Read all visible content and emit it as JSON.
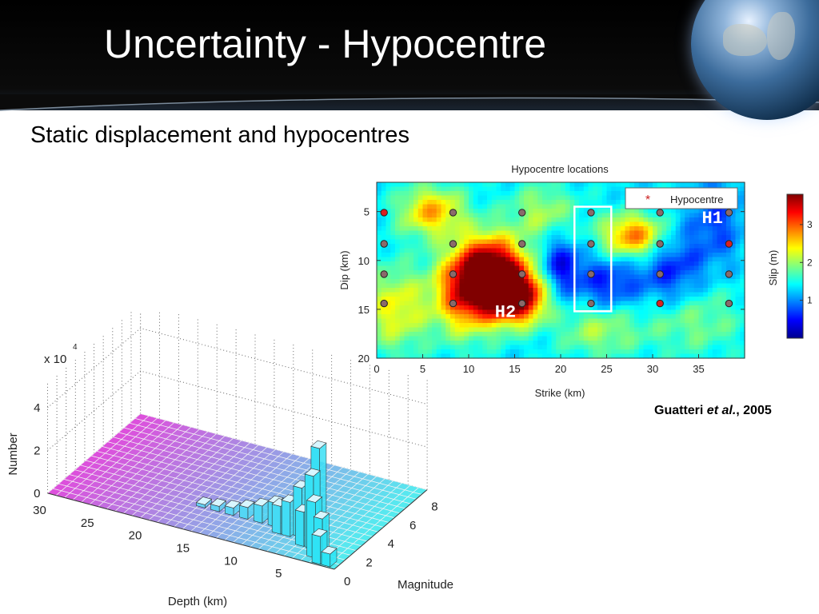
{
  "slide": {
    "title": "Uncertainty - Hypocentre",
    "subtitle": "Static displacement and hypocentres",
    "citation": {
      "author": "Guatteri",
      "etal": "et al.",
      "year": ", 2005"
    }
  },
  "colors": {
    "header_bg": "#000000",
    "title_text": "#ffffff",
    "hypocentre_marker": "#cc2222",
    "highlight_box": "#ffffff"
  },
  "chart_data": [
    {
      "type": "heatmap",
      "title": "Hypocentre locations",
      "xlabel": "Strike (km)",
      "ylabel": "Dip (km)",
      "xlim": [
        0,
        40
      ],
      "ylim": [
        20,
        2
      ],
      "xticks": [
        0,
        5,
        10,
        15,
        20,
        25,
        30,
        35
      ],
      "yticks": [
        5,
        10,
        15,
        20
      ],
      "colorbar": {
        "label": "Slip (m)",
        "ticks": [
          1,
          2,
          3
        ],
        "range": [
          0,
          3.8
        ],
        "colormap": "jet"
      },
      "legend": {
        "label": "Hypocentre",
        "placement": "top-right"
      },
      "annotations": [
        {
          "label": "H1",
          "x": 36.5,
          "y": 5.7
        },
        {
          "label": "H2",
          "x": 14,
          "y": 15.3
        }
      ],
      "highlight_box": {
        "x_range": [
          21.5,
          25.5
        ],
        "y_range": [
          4.5,
          15.2
        ]
      },
      "hypocentres": [
        {
          "x": 0.8,
          "y": 5.1,
          "hl": true
        },
        {
          "x": 8.3,
          "y": 5.1
        },
        {
          "x": 15.8,
          "y": 5.1
        },
        {
          "x": 23.3,
          "y": 5.1
        },
        {
          "x": 30.8,
          "y": 5.1
        },
        {
          "x": 38.3,
          "y": 5.1
        },
        {
          "x": 0.8,
          "y": 8.3
        },
        {
          "x": 8.3,
          "y": 8.3
        },
        {
          "x": 15.8,
          "y": 8.3
        },
        {
          "x": 23.3,
          "y": 8.3
        },
        {
          "x": 30.8,
          "y": 8.3
        },
        {
          "x": 38.3,
          "y": 8.3,
          "hl": true
        },
        {
          "x": 0.8,
          "y": 11.4
        },
        {
          "x": 8.3,
          "y": 11.4
        },
        {
          "x": 15.8,
          "y": 11.4
        },
        {
          "x": 23.3,
          "y": 11.4
        },
        {
          "x": 30.8,
          "y": 11.4
        },
        {
          "x": 38.3,
          "y": 11.4
        },
        {
          "x": 0.8,
          "y": 14.4
        },
        {
          "x": 8.3,
          "y": 14.4
        },
        {
          "x": 15.8,
          "y": 14.4
        },
        {
          "x": 23.3,
          "y": 14.4
        },
        {
          "x": 30.8,
          "y": 14.4,
          "hl": true
        },
        {
          "x": 38.3,
          "y": 14.4
        }
      ],
      "slip_blobs": [
        {
          "x": 12.5,
          "y": 11.5,
          "sx": 2.6,
          "sy": 2.6,
          "v": 3.0
        },
        {
          "x": 15.5,
          "y": 13.8,
          "sx": 2.0,
          "sy": 1.8,
          "v": 2.2
        },
        {
          "x": 9.5,
          "y": 13.5,
          "sx": 2.5,
          "sy": 3.0,
          "v": 1.4
        },
        {
          "x": 28,
          "y": 7.5,
          "sx": 2.5,
          "sy": 1.6,
          "v": 1.6
        },
        {
          "x": 6,
          "y": 5,
          "sx": 2.5,
          "sy": 1.8,
          "v": 1.3
        },
        {
          "x": 2,
          "y": 15,
          "sx": 2.5,
          "sy": 3,
          "v": 1.0
        },
        {
          "x": 18,
          "y": 5,
          "sx": 2.5,
          "sy": 2,
          "v": 0.7
        },
        {
          "x": 34,
          "y": 16,
          "sx": 4,
          "sy": 2.5,
          "v": 0.6
        },
        {
          "x": 24,
          "y": 17,
          "sx": 3,
          "sy": 2,
          "v": 0.7
        },
        {
          "x": 20,
          "y": 10.5,
          "sx": 1.5,
          "sy": 2,
          "v": -0.9
        },
        {
          "x": 25,
          "y": 12.5,
          "sx": 2.5,
          "sy": 2,
          "v": -0.8
        },
        {
          "x": 32,
          "y": 11,
          "sx": 2.5,
          "sy": 3,
          "v": -0.8
        },
        {
          "x": 37,
          "y": 6,
          "sx": 2,
          "sy": 3,
          "v": -0.6
        }
      ],
      "slip_base": 1.35
    },
    {
      "type": "bar",
      "subtype": "3d-histogram",
      "xlabel": "Depth (km)",
      "ylabel": "Magnitude",
      "zlabel": "Number",
      "z_multiplier": "x 10",
      "z_exponent": "4",
      "xticks": [
        30,
        25,
        20,
        15,
        10,
        5
      ],
      "yticks": [
        0,
        2,
        4,
        6,
        8
      ],
      "zticks": [
        0,
        2,
        4
      ],
      "bars": [
        {
          "depth": 1,
          "mag": 0.4,
          "value": 0.6
        },
        {
          "depth": 2,
          "mag": 0.4,
          "value": 1.3
        },
        {
          "depth": 2.5,
          "mag": 1.0,
          "value": 1.8
        },
        {
          "depth": 3,
          "mag": 0.8,
          "value": 2.6
        },
        {
          "depth": 4,
          "mag": 1.5,
          "value": 3.4
        },
        {
          "depth": 4.5,
          "mag": 2.5,
          "value": 4.2
        },
        {
          "depth": 5,
          "mag": 1.5,
          "value": 1.6
        },
        {
          "depth": 6,
          "mag": 2.2,
          "value": 2.3
        },
        {
          "depth": 7,
          "mag": 2.0,
          "value": 1.6
        },
        {
          "depth": 8,
          "mag": 2.0,
          "value": 1.3
        },
        {
          "depth": 9,
          "mag": 2.5,
          "value": 1.1
        },
        {
          "depth": 10.5,
          "mag": 2.5,
          "value": 0.8
        },
        {
          "depth": 12,
          "mag": 2.5,
          "value": 0.55
        },
        {
          "depth": 13.5,
          "mag": 2.5,
          "value": 0.35
        },
        {
          "depth": 15,
          "mag": 2.5,
          "value": 0.25
        },
        {
          "depth": 16.5,
          "mag": 2.5,
          "value": 0.15
        }
      ]
    }
  ]
}
